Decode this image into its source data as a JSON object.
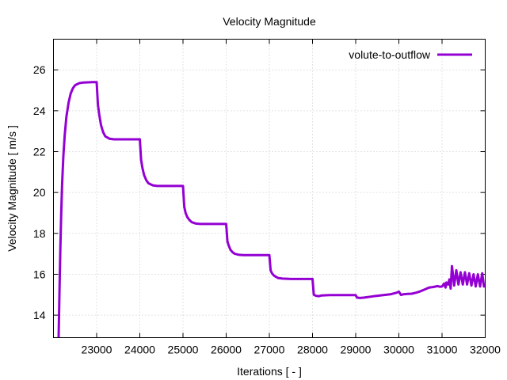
{
  "chart_data": {
    "type": "line",
    "title": "Velocity Magnitude",
    "xlabel": "Iterations [ - ]",
    "ylabel": "Velocity Magnitude [ m/s ]",
    "xlim": [
      22000,
      32000
    ],
    "ylim": [
      12.9,
      27.5
    ],
    "x_ticks": [
      23000,
      24000,
      25000,
      26000,
      27000,
      28000,
      29000,
      30000,
      31000,
      32000
    ],
    "y_ticks": [
      14,
      16,
      18,
      20,
      22,
      24,
      26
    ],
    "grid": true,
    "legend_position": "top-right",
    "series": [
      {
        "name": "volute-to-outflow",
        "color": "#9400d3",
        "points": [
          [
            22120,
            12.9
          ],
          [
            22140,
            15.2
          ],
          [
            22160,
            17.3
          ],
          [
            22180,
            19.0
          ],
          [
            22200,
            20.4
          ],
          [
            22230,
            21.8
          ],
          [
            22260,
            22.8
          ],
          [
            22300,
            23.7
          ],
          [
            22350,
            24.4
          ],
          [
            22400,
            24.85
          ],
          [
            22450,
            25.1
          ],
          [
            22500,
            25.25
          ],
          [
            22600,
            25.35
          ],
          [
            22700,
            25.38
          ],
          [
            22800,
            25.39
          ],
          [
            22900,
            25.4
          ],
          [
            23000,
            25.4
          ],
          [
            23030,
            24.3
          ],
          [
            23060,
            23.8
          ],
          [
            23100,
            23.3
          ],
          [
            23150,
            22.95
          ],
          [
            23200,
            22.75
          ],
          [
            23300,
            22.63
          ],
          [
            23400,
            22.6
          ],
          [
            23600,
            22.6
          ],
          [
            23800,
            22.6
          ],
          [
            24000,
            22.6
          ],
          [
            24030,
            21.6
          ],
          [
            24060,
            21.2
          ],
          [
            24100,
            20.85
          ],
          [
            24150,
            20.6
          ],
          [
            24200,
            20.45
          ],
          [
            24300,
            20.35
          ],
          [
            24400,
            20.32
          ],
          [
            24600,
            20.32
          ],
          [
            24800,
            20.32
          ],
          [
            25000,
            20.32
          ],
          [
            25030,
            19.3
          ],
          [
            25060,
            19.0
          ],
          [
            25100,
            18.8
          ],
          [
            25150,
            18.65
          ],
          [
            25200,
            18.55
          ],
          [
            25300,
            18.48
          ],
          [
            25400,
            18.46
          ],
          [
            25700,
            18.46
          ],
          [
            26000,
            18.46
          ],
          [
            26030,
            17.6
          ],
          [
            26060,
            17.4
          ],
          [
            26100,
            17.2
          ],
          [
            26150,
            17.07
          ],
          [
            26200,
            17.0
          ],
          [
            26300,
            16.95
          ],
          [
            26400,
            16.94
          ],
          [
            26700,
            16.94
          ],
          [
            27000,
            16.94
          ],
          [
            27030,
            16.2
          ],
          [
            27060,
            16.05
          ],
          [
            27100,
            15.95
          ],
          [
            27150,
            15.88
          ],
          [
            27200,
            15.82
          ],
          [
            27300,
            15.79
          ],
          [
            27500,
            15.77
          ],
          [
            27700,
            15.77
          ],
          [
            28000,
            15.77
          ],
          [
            28030,
            15.0
          ],
          [
            28080,
            14.95
          ],
          [
            28150,
            14.93
          ],
          [
            28200,
            14.96
          ],
          [
            28400,
            14.98
          ],
          [
            28700,
            14.98
          ],
          [
            29000,
            14.98
          ],
          [
            29030,
            14.86
          ],
          [
            29100,
            14.84
          ],
          [
            29200,
            14.86
          ],
          [
            29400,
            14.92
          ],
          [
            29600,
            14.97
          ],
          [
            29800,
            15.02
          ],
          [
            29950,
            15.1
          ],
          [
            30000,
            15.15
          ],
          [
            30050,
            14.99
          ],
          [
            30100,
            15.02
          ],
          [
            30200,
            15.04
          ],
          [
            30300,
            15.05
          ],
          [
            30400,
            15.1
          ],
          [
            30500,
            15.17
          ],
          [
            30600,
            15.26
          ],
          [
            30700,
            15.35
          ],
          [
            30800,
            15.38
          ],
          [
            30900,
            15.42
          ],
          [
            30950,
            15.39
          ],
          [
            31000,
            15.4
          ],
          [
            31050,
            15.55
          ],
          [
            31080,
            15.35
          ],
          [
            31100,
            15.6
          ],
          [
            31140,
            15.5
          ],
          [
            31170,
            15.75
          ],
          [
            31200,
            15.3
          ],
          [
            31230,
            16.4
          ],
          [
            31280,
            15.45
          ],
          [
            31330,
            16.2
          ],
          [
            31380,
            15.5
          ],
          [
            31430,
            16.1
          ],
          [
            31480,
            15.5
          ],
          [
            31530,
            16.1
          ],
          [
            31580,
            15.5
          ],
          [
            31630,
            16.05
          ],
          [
            31680,
            15.45
          ],
          [
            31730,
            16.0
          ],
          [
            31780,
            15.4
          ],
          [
            31830,
            16.0
          ],
          [
            31880,
            15.4
          ],
          [
            31930,
            16.05
          ],
          [
            31970,
            15.4
          ],
          [
            32000,
            15.45
          ]
        ]
      }
    ]
  }
}
